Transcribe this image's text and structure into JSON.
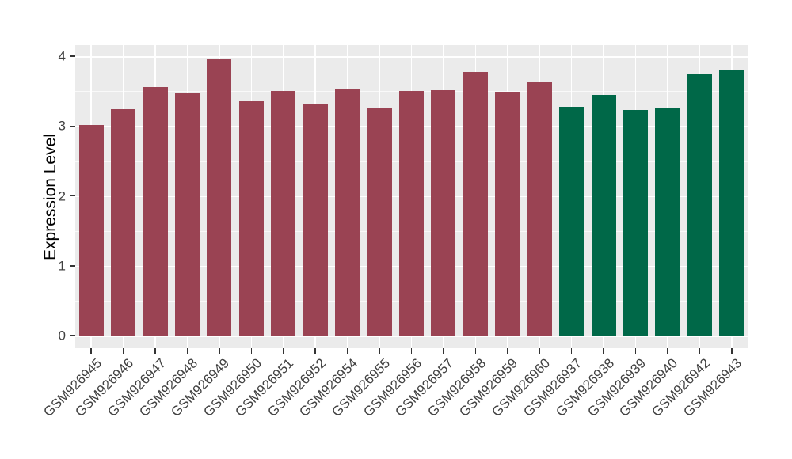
{
  "chart_data": {
    "type": "bar",
    "title": "",
    "xlabel": "",
    "ylabel": "Expression Level",
    "ylim": [
      0,
      4.2
    ],
    "ytick_values": [
      0,
      1,
      2,
      3,
      4
    ],
    "ytick_labels": [
      "0",
      "1",
      "2",
      "3",
      "4"
    ],
    "grid": "white major gridlines at integers, minor at halves, vertical lines at category centers, on gray panel",
    "legend_position": "none",
    "x_label_rotation_deg": 45,
    "categories": [
      "GSM926945",
      "GSM926946",
      "GSM926947",
      "GSM926948",
      "GSM926949",
      "GSM926950",
      "GSM926951",
      "GSM926952",
      "GSM926954",
      "GSM926955",
      "GSM926956",
      "GSM926957",
      "GSM926958",
      "GSM926959",
      "GSM926960",
      "GSM926937",
      "GSM926938",
      "GSM926939",
      "GSM926940",
      "GSM926942",
      "GSM926943"
    ],
    "values": [
      3.02,
      3.24,
      3.56,
      3.47,
      3.96,
      3.37,
      3.5,
      3.31,
      3.54,
      3.27,
      3.5,
      3.52,
      3.78,
      3.49,
      3.63,
      3.28,
      3.45,
      3.23,
      3.26,
      3.74,
      3.81
    ],
    "colors": [
      "#9a4353",
      "#9a4353",
      "#9a4353",
      "#9a4353",
      "#9a4353",
      "#9a4353",
      "#9a4353",
      "#9a4353",
      "#9a4353",
      "#9a4353",
      "#9a4353",
      "#9a4353",
      "#9a4353",
      "#9a4353",
      "#9a4353",
      "#006848",
      "#006848",
      "#006848",
      "#006848",
      "#006848",
      "#006848"
    ],
    "color_groups": [
      {
        "color": "#9a4353",
        "count": 15
      },
      {
        "color": "#006848",
        "count": 6
      }
    ]
  },
  "style": {
    "figure_background": "#ffffff",
    "panel_background": "#ebebeb",
    "gridline_color": "#ffffff",
    "axis_tick_color": "#333333",
    "axis_text_color": "#404040",
    "axis_title_color": "#000000"
  }
}
